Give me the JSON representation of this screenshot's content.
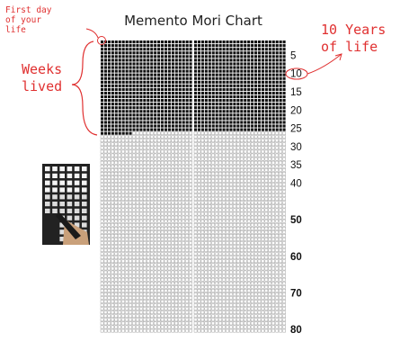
{
  "chart": {
    "title": "Memento Mori Chart",
    "total_years": 80,
    "weeks_per_year": 52,
    "weeks_lived": 1309,
    "year_labels": [
      {
        "year": 5,
        "label": "5"
      },
      {
        "year": 10,
        "label": "10"
      },
      {
        "year": 15,
        "label": "15"
      },
      {
        "year": 20,
        "label": "20"
      },
      {
        "year": 25,
        "label": "25"
      },
      {
        "year": 30,
        "label": "30"
      },
      {
        "year": 35,
        "label": "35"
      },
      {
        "year": 40,
        "label": "40"
      },
      {
        "year": 50,
        "label": "50"
      },
      {
        "year": 60,
        "label": "60"
      },
      {
        "year": 70,
        "label": "70"
      },
      {
        "year": 80,
        "label": "80"
      }
    ]
  },
  "annotations": {
    "first_day": "First day\nof your\nlife",
    "ten_years": "10 Years\nof life",
    "weeks_lived": "Weeks\nlived"
  },
  "colors": {
    "lived": "#111111",
    "remaining_stroke": "#7a7a7a",
    "annotation": "#e03030"
  }
}
